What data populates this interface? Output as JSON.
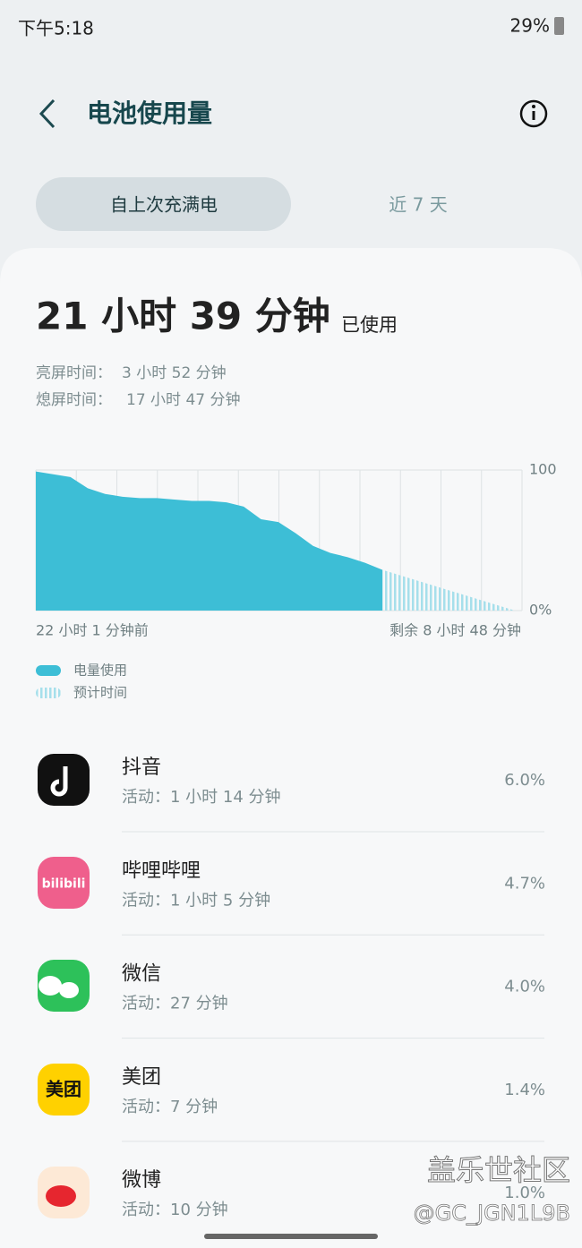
{
  "status_bar": {
    "time": "下午5:18",
    "battery": "29%"
  },
  "header": {
    "title": "电池使用量"
  },
  "tabs": [
    "自上次充满电",
    "近 7 天"
  ],
  "summary": {
    "total": "21 小时 39 分钟",
    "total_suffix": "已使用",
    "screen_on_label": "亮屏时间：",
    "screen_on": "3 小时 52 分钟",
    "screen_off_label": "熄屏时间：",
    "screen_off": "17 小时 47 分钟"
  },
  "chart_data": {
    "type": "area",
    "series": [
      {
        "name": "电量使用",
        "color": "#3dbed6",
        "values": [
          99,
          97,
          95,
          87,
          83,
          81,
          80,
          80,
          79,
          78,
          78,
          77,
          74,
          65,
          63,
          55,
          46,
          41,
          38,
          34,
          29
        ]
      },
      {
        "name": "预计时间",
        "color": "#a6dfeb",
        "values": [
          29,
          0
        ]
      }
    ],
    "ylim": [
      0,
      100
    ],
    "yticks": [
      100,
      {
        "value": 0,
        "label": "0%"
      }
    ],
    "x_start_label": "22 小时 1 分钟前",
    "x_end_label": "剩余 8 小时 48 分钟"
  },
  "apps": [
    {
      "name": "抖音",
      "activity": "活动：1 小时 14 分钟",
      "percent": "6.0%"
    },
    {
      "name": "哔哩哔哩",
      "activity": "活动：1 小时 5 分钟",
      "percent": "4.7%",
      "icon_text": "bilibili"
    },
    {
      "name": "微信",
      "activity": "活动：27 分钟",
      "percent": "4.0%"
    },
    {
      "name": "美团",
      "activity": "活动：7 分钟",
      "percent": "1.4%",
      "icon_text": "美团"
    },
    {
      "name": "微博",
      "activity": "活动：10 分钟",
      "percent": "1.0%"
    }
  ],
  "watermark": {
    "title": "盖乐世社区",
    "handle": "@GC_JGN1L9B"
  }
}
